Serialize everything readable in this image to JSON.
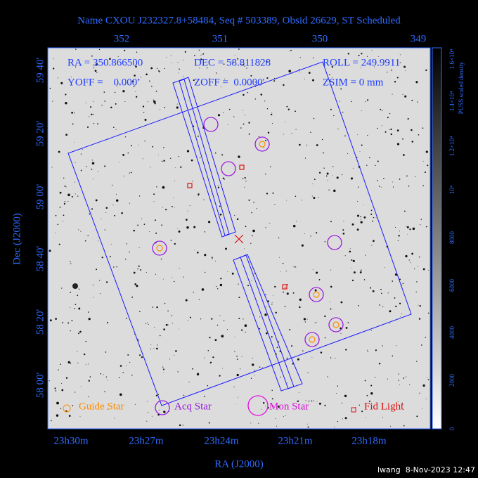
{
  "title": "Name CXOU J232327.8+58484, Seq # 503389, Obsid 26629, ST Scheduled",
  "info": {
    "ra": "RA = 350.866500",
    "dec": "DEC = 58.811828",
    "roll": "ROLL = 249.9911",
    "yoff": "YOFF =    0.000'",
    "zoff": "ZOFF =  0.0000'",
    "zsim": "ZSIM = 0 mm"
  },
  "top_axis_labels": [
    "352",
    "351",
    "350",
    "349"
  ],
  "bottom_axis_labels": [
    "23h30m",
    "23h27m",
    "23h24m",
    "23h21m",
    "23h18m"
  ],
  "left_axis_labels": [
    "59 40'",
    "59 20'",
    "59 00'",
    "58 40'",
    "58 20'",
    "58 00'"
  ],
  "x_axis_title": "RA (J2000)",
  "y_axis_title": "Dec (J2000)",
  "legend": [
    "Guide Star",
    "Acq Star",
    "Mon Star",
    "Fid Light"
  ],
  "colorbar": {
    "title": "PUSS scaled density",
    "labels": [
      "0",
      "2000",
      "4000",
      "6000",
      "8000",
      "10⁴",
      "1.2×10⁴",
      "1.4×10⁴",
      "1.6×10⁴"
    ]
  },
  "footer": "lwang  8-Nov-2023 12:47"
}
